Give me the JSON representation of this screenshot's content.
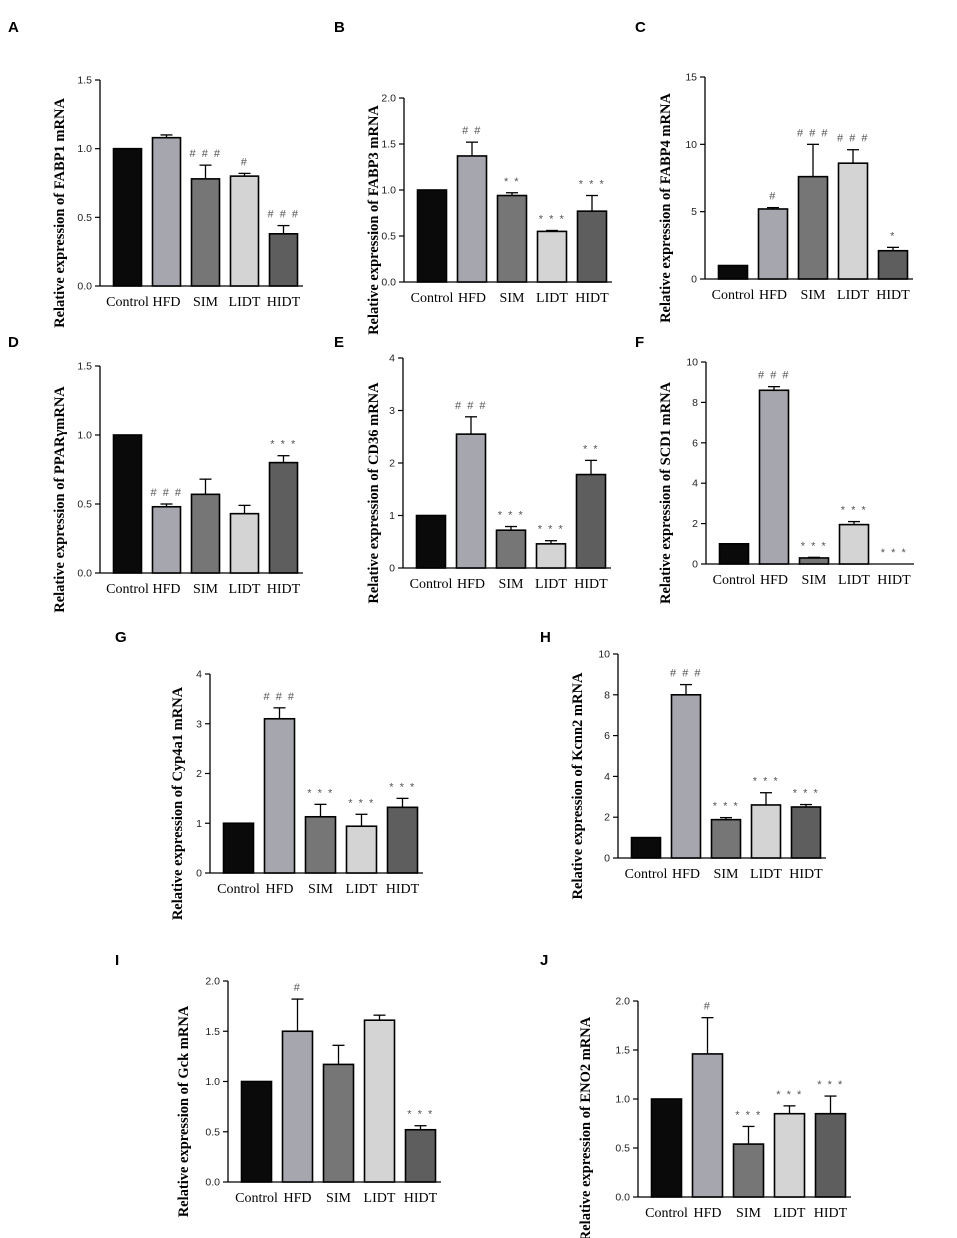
{
  "palette": {
    "bar_fills": [
      "#0a0a0a",
      "#a6a6ae",
      "#767676",
      "#d4d4d4",
      "#5e5e5e"
    ],
    "axis": "#000000",
    "significance": "#555555"
  },
  "chart_data": [
    {
      "panel": "A",
      "type": "bar",
      "ylabel": "Relative expression of FABP1 mRNA",
      "categories": [
        "Control",
        "HFD",
        "SIM",
        "LIDT",
        "HIDT"
      ],
      "values": [
        1.0,
        1.08,
        0.78,
        0.8,
        0.38
      ],
      "errors": [
        0,
        0.02,
        0.1,
        0.02,
        0.06
      ],
      "significance": [
        "",
        "",
        "###",
        "#",
        "###"
      ],
      "ylim": [
        0,
        1.5
      ],
      "ticks": [
        "0.0",
        "0.5",
        "1.0",
        "1.5"
      ]
    },
    {
      "panel": "B",
      "type": "bar",
      "ylabel": "Relative expression of FABP3 mRNA",
      "categories": [
        "Control",
        "HFD",
        "SIM",
        "LIDT",
        "HIDT"
      ],
      "values": [
        1.0,
        1.37,
        0.94,
        0.55,
        0.77
      ],
      "errors": [
        0,
        0.15,
        0.03,
        0.01,
        0.17
      ],
      "significance": [
        "",
        "##",
        "**",
        "***",
        "***"
      ],
      "ylim": [
        0,
        2.0
      ],
      "ticks": [
        "0.0",
        "0.5",
        "1.0",
        "1.5",
        "2.0"
      ]
    },
    {
      "panel": "C",
      "type": "bar",
      "ylabel": "Relative expression of FABP4 mRNA",
      "categories": [
        "Control",
        "HFD",
        "SIM",
        "LIDT",
        "HIDT"
      ],
      "values": [
        1.0,
        5.2,
        7.6,
        8.6,
        2.1
      ],
      "errors": [
        0,
        0.1,
        2.4,
        1.0,
        0.25
      ],
      "significance": [
        "",
        "#",
        "###",
        "###",
        "*"
      ],
      "ylim": [
        0,
        15
      ],
      "ticks": [
        "0",
        "5",
        "10",
        "15"
      ]
    },
    {
      "panel": "D",
      "type": "bar",
      "ylabel": "Relative expression of PPARγmRNA",
      "categories": [
        "Control",
        "HFD",
        "SIM",
        "LIDT",
        "HIDT"
      ],
      "values": [
        1.0,
        0.48,
        0.57,
        0.43,
        0.8
      ],
      "errors": [
        0,
        0.02,
        0.11,
        0.06,
        0.05
      ],
      "significance": [
        "",
        "###",
        "",
        "",
        "***"
      ],
      "ylim": [
        0,
        1.5
      ],
      "ticks": [
        "0.0",
        "0.5",
        "1.0",
        "1.5"
      ]
    },
    {
      "panel": "E",
      "type": "bar",
      "ylabel": "Relative expression of CD36 mRNA",
      "categories": [
        "Control",
        "HFD",
        "SIM",
        "LIDT",
        "HIDT"
      ],
      "values": [
        1.0,
        2.55,
        0.72,
        0.46,
        1.78
      ],
      "errors": [
        0,
        0.33,
        0.07,
        0.06,
        0.27
      ],
      "significance": [
        "",
        "###",
        "***",
        "***",
        "**"
      ],
      "ylim": [
        0,
        4
      ],
      "ticks": [
        "0",
        "1",
        "2",
        "3",
        "4"
      ]
    },
    {
      "panel": "F",
      "type": "bar",
      "ylabel": "Relative expression of SCD1 mRNA",
      "categories": [
        "Control",
        "HFD",
        "SIM",
        "LIDT",
        "HIDT"
      ],
      "values": [
        1.0,
        8.6,
        0.3,
        1.95,
        0.0
      ],
      "errors": [
        0,
        0.18,
        0.03,
        0.15,
        0
      ],
      "significance": [
        "",
        "###",
        "***",
        "***",
        "***"
      ],
      "ylim": [
        0,
        10
      ],
      "ticks": [
        "0",
        "2",
        "4",
        "6",
        "8",
        "10"
      ]
    },
    {
      "panel": "G",
      "type": "bar",
      "ylabel": "Relative expression of Cyp4a1 mRNA",
      "categories": [
        "Control",
        "HFD",
        "SIM",
        "LIDT",
        "HIDT"
      ],
      "values": [
        1.0,
        3.1,
        1.13,
        0.94,
        1.32
      ],
      "errors": [
        0,
        0.22,
        0.25,
        0.24,
        0.18
      ],
      "significance": [
        "",
        "###",
        "***",
        "***",
        "***"
      ],
      "ylim": [
        0,
        4
      ],
      "ticks": [
        "0",
        "1",
        "2",
        "3",
        "4"
      ]
    },
    {
      "panel": "H",
      "type": "bar",
      "ylabel": "Relative expression of Kcnn2 mRNA",
      "categories": [
        "Control",
        "HFD",
        "SIM",
        "LIDT",
        "HIDT"
      ],
      "values": [
        1.0,
        8.0,
        1.88,
        2.6,
        2.5
      ],
      "errors": [
        0,
        0.5,
        0.1,
        0.6,
        0.12
      ],
      "significance": [
        "",
        "###",
        "***",
        "***",
        "***"
      ],
      "ylim": [
        0,
        10
      ],
      "ticks": [
        "0",
        "2",
        "4",
        "6",
        "8",
        "10"
      ]
    },
    {
      "panel": "I",
      "type": "bar",
      "ylabel": "Relative expression of Gck mRNA",
      "categories": [
        "Control",
        "HFD",
        "SIM",
        "LIDT",
        "HIDT"
      ],
      "values": [
        1.0,
        1.5,
        1.17,
        1.61,
        0.52
      ],
      "errors": [
        0,
        0.32,
        0.19,
        0.05,
        0.04
      ],
      "significance": [
        "",
        "#",
        "",
        "",
        "***"
      ],
      "ylim": [
        0,
        2.0
      ],
      "ticks": [
        "0.0",
        "0.5",
        "1.0",
        "1.5",
        "2.0"
      ]
    },
    {
      "panel": "J",
      "type": "bar",
      "ylabel": "Relative expression of ENO2 mRNA",
      "categories": [
        "Control",
        "HFD",
        "SIM",
        "LIDT",
        "HIDT"
      ],
      "values": [
        1.0,
        1.46,
        0.54,
        0.85,
        0.85
      ],
      "errors": [
        0,
        0.37,
        0.18,
        0.08,
        0.18
      ],
      "significance": [
        "",
        "#",
        "***",
        "***",
        "***"
      ],
      "ylim": [
        0,
        2.0
      ],
      "ticks": [
        "0.0",
        "0.5",
        "1.0",
        "1.5",
        "2.0"
      ]
    }
  ]
}
